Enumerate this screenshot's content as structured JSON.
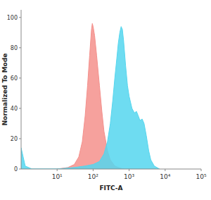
{
  "chart_data": {
    "type": "area",
    "x_label": "FITC-A",
    "y_label": "Normalized To Mode",
    "log": "x",
    "xlim": [
      1,
      100000
    ],
    "xticks": [
      {
        "value": 10,
        "label": "10¹"
      },
      {
        "value": 100,
        "label": "10²"
      },
      {
        "value": 1000,
        "label": "10³"
      },
      {
        "value": 10000,
        "label": "10⁴"
      },
      {
        "value": 100000,
        "label": "10⁵"
      }
    ],
    "ylim": [
      0,
      105
    ],
    "yticks": [
      0,
      20,
      40,
      60,
      80,
      100
    ],
    "series": [
      {
        "color": "#f4908c",
        "x": [
          10,
          20,
          30,
          40,
          50,
          60,
          70,
          80,
          90,
          95,
          100,
          110,
          125,
          150,
          175,
          200,
          250,
          300,
          400,
          500,
          700
        ],
        "values": [
          0,
          1,
          3,
          8,
          18,
          35,
          55,
          75,
          92,
          96,
          94,
          88,
          75,
          55,
          38,
          25,
          12,
          6,
          2,
          1,
          0
        ]
      },
      {
        "color": "#55d6ee",
        "x": [
          1,
          1.3,
          2,
          10,
          30,
          60,
          100,
          150,
          200,
          250,
          300,
          350,
          400,
          450,
          500,
          550,
          600,
          650,
          700,
          800,
          900,
          1000,
          1200,
          1400,
          1600,
          1800,
          2000,
          2300,
          2600,
          3000,
          3500,
          4000,
          5000,
          7000
        ],
        "values": [
          14,
          2,
          0,
          0,
          1,
          2,
          3,
          5,
          10,
          18,
          30,
          45,
          60,
          72,
          83,
          90,
          94,
          92,
          85,
          68,
          55,
          48,
          40,
          37,
          38,
          35,
          32,
          33,
          30,
          22,
          12,
          6,
          2,
          0
        ]
      }
    ]
  }
}
